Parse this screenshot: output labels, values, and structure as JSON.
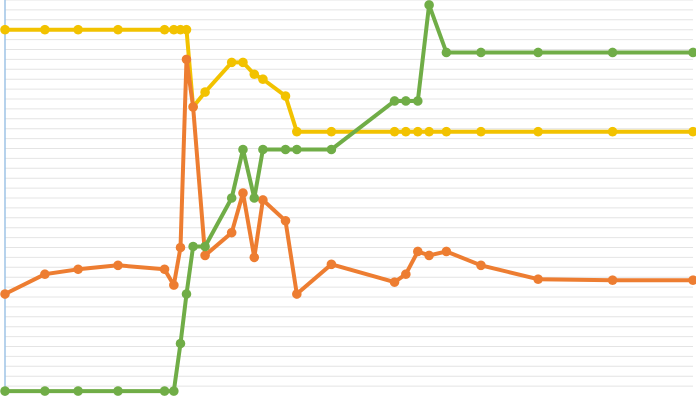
{
  "chart_data": {
    "type": "line",
    "title": "",
    "xlabel": "",
    "ylabel": "",
    "grid": true,
    "x": [
      0,
      6,
      11,
      17,
      24,
      25.4,
      26.4,
      27.3,
      28.3,
      30.1,
      34.1,
      35.8,
      37.5,
      38.8,
      42.2,
      43.9,
      49.1,
      58.6,
      60.3,
      62.1,
      63.8,
      66.4,
      71.6,
      80.2,
      91.4,
      103.5
    ],
    "ylim": [
      0,
      400
    ],
    "series": [
      {
        "color": "#F2C200",
        "values": [
          370,
          370,
          370,
          370,
          370,
          370,
          370,
          370,
          292,
          307,
          337,
          337,
          325,
          320,
          303,
          267,
          267,
          267,
          267,
          267,
          267,
          267,
          267,
          267,
          267,
          267
        ]
      },
      {
        "color": "#ED7D31",
        "values": [
          103,
          123,
          128,
          132,
          128,
          112,
          150,
          340,
          292,
          142,
          165,
          205,
          140,
          198,
          177,
          103,
          133,
          115,
          123,
          146,
          142,
          146,
          132,
          118,
          117,
          117
        ]
      },
      {
        "color": "#70AD47",
        "values": [
          5,
          5,
          5,
          5,
          5,
          5,
          53,
          103,
          151,
          151,
          200,
          249,
          200,
          249,
          249,
          249,
          249,
          298,
          298,
          298,
          395,
          347,
          347,
          347,
          347,
          347
        ]
      }
    ]
  }
}
